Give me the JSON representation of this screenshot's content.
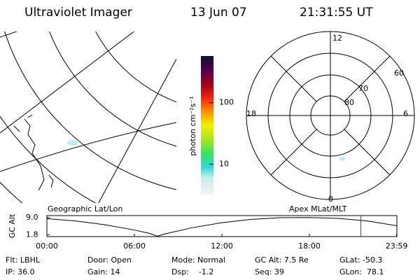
{
  "header": {
    "title": "Ultraviolet Imager",
    "date": "13 Jun 07",
    "time": "21:31:55 UT"
  },
  "colorbar": {
    "label": "photon cm⁻²s⁻¹",
    "scale": "log",
    "lim": [
      3.2,
      575
    ],
    "ticks": [
      10,
      100
    ]
  },
  "polar": {
    "mlt_labels": [
      "12",
      "18",
      "6",
      "0"
    ],
    "mlat_labels": [
      "60",
      "70",
      "80"
    ]
  },
  "panel_labels": {
    "left": "Geographic Lat/Lon",
    "right": "Apex MLat/MLT"
  },
  "altitude_plot": {
    "ylabel": "GC Alt",
    "xlim": [
      0,
      24
    ],
    "ylim": [
      1.0,
      9.9
    ],
    "yticks": [
      {
        "value": 9,
        "label": "9.0"
      },
      1.8
    ],
    "xticks": [
      {
        "value": 0,
        "label": "00:00"
      },
      {
        "value": 6,
        "label": "06:00"
      },
      {
        "value": 12,
        "label": "12:00"
      },
      {
        "value": 18,
        "label": "18:00"
      },
      {
        "value": 23.98,
        "label": "23:59"
      }
    ],
    "x": [
      0,
      2,
      4,
      6,
      7,
      7.6,
      8,
      10,
      12,
      14,
      16,
      18,
      20,
      22,
      24
    ],
    "y": [
      8.6,
      7.6,
      6.0,
      3.8,
      2.4,
      1.2,
      2.0,
      4.8,
      6.9,
      8.3,
      9.0,
      9.1,
      8.7,
      7.6,
      5.6
    ],
    "color": "#000000",
    "marker": 21.53,
    "marker_color": "#e00000"
  },
  "footer": {
    "rows": [
      [
        "Flt: LBHL",
        "Door: Open",
        "Mode: Normal",
        "GC Alt: 7.5 Re",
        "GLat: -50.3"
      ],
      [
        "IP: 36.0",
        "Gain: 14",
        "Dsp:    -1.2",
        "Seq: 39",
        "GLon:  78.1"
      ]
    ]
  }
}
